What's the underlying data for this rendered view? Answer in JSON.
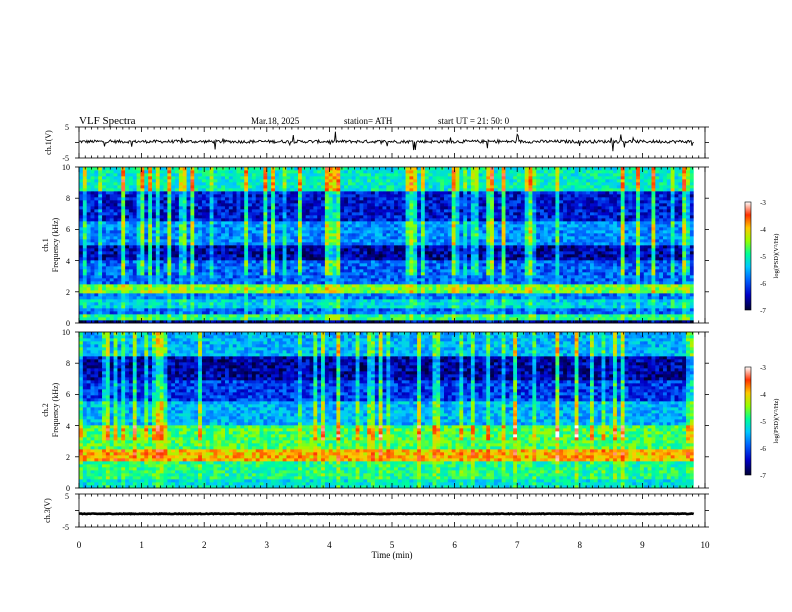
{
  "header": {
    "title": "VLF  Spectra",
    "date": "Mar.18, 2025",
    "station": "station= ATH",
    "start": "start  UT  =   21: 50: 0"
  },
  "panels": {
    "ch1_wave": {
      "ylabel": "ch.1(V)",
      "yticks": [
        "5",
        "-5"
      ]
    },
    "ch1_spec": {
      "ylabel_ch": "ch.1",
      "ylabel": "Frequency  (kHz)",
      "yticks": [
        "10",
        "8",
        "6",
        "4",
        "2",
        "0"
      ]
    },
    "ch2_spec": {
      "ylabel_ch": "ch.2",
      "ylabel": "Frequency  (kHz)",
      "yticks": [
        "10",
        "8",
        "6",
        "4",
        "2",
        "0"
      ]
    },
    "ch3_wave": {
      "ylabel": "ch.3(V)",
      "yticks": [
        "5",
        "-5"
      ]
    }
  },
  "xaxis": {
    "label": "Time  (min)",
    "ticks": [
      "0",
      "1",
      "2",
      "3",
      "4",
      "5",
      "6",
      "7",
      "8",
      "9",
      "10"
    ]
  },
  "colorbar": {
    "label": "log(PSD)(V²/Hz)",
    "ticks": [
      "-3",
      "-4",
      "-5",
      "-6",
      "-7"
    ]
  },
  "chart_data": [
    {
      "type": "line",
      "series_label": "ch.1(V)",
      "xlim": [
        0,
        10
      ],
      "ylim": [
        -5,
        5
      ],
      "data_extent_min": 9.82,
      "baseline_v": 0.3,
      "noise_amplitude_v": 1.0
    },
    {
      "type": "heatmap",
      "series_label": "ch.1",
      "xlabel": "Time  (min)",
      "ylabel": "Frequency  (kHz)",
      "xlim": [
        0,
        10
      ],
      "ylim": [
        0,
        10
      ],
      "color_scale": "log(PSD)(V²/Hz)",
      "clim": [
        -7,
        -3
      ],
      "colormap": [
        "#000033",
        "#0000c8",
        "#0064ff",
        "#00c8ff",
        "#00ff96",
        "#96ff00",
        "#ffc800",
        "#ff3200",
        "#ffffff"
      ],
      "data_extent_min": 9.82,
      "band_structure": [
        {
          "f_khz": [
            0.0,
            0.2
          ],
          "log_psd": -6.8
        },
        {
          "f_khz": [
            0.2,
            0.5
          ],
          "log_psd": -5.0
        },
        {
          "f_khz": [
            0.5,
            1.0
          ],
          "log_psd": -6.0
        },
        {
          "f_khz": [
            1.0,
            1.5
          ],
          "log_psd": -5.4
        },
        {
          "f_khz": [
            1.5,
            2.0
          ],
          "log_psd": -5.9
        },
        {
          "f_khz": [
            2.0,
            2.5
          ],
          "log_psd": -4.6
        },
        {
          "f_khz": [
            2.5,
            4.0
          ],
          "log_psd": -6.0
        },
        {
          "f_khz": [
            4.0,
            5.0
          ],
          "log_psd": -6.6
        },
        {
          "f_khz": [
            5.0,
            6.5
          ],
          "log_psd": -5.8
        },
        {
          "f_khz": [
            6.5,
            8.5
          ],
          "log_psd": -6.4
        },
        {
          "f_khz": [
            8.5,
            10.0
          ],
          "log_psd": -5.2
        }
      ]
    },
    {
      "type": "heatmap",
      "series_label": "ch.2",
      "xlabel": "Time  (min)",
      "ylabel": "Frequency  (kHz)",
      "xlim": [
        0,
        10
      ],
      "ylim": [
        0,
        10
      ],
      "color_scale": "log(PSD)(V²/Hz)",
      "clim": [
        -7,
        -3
      ],
      "colormap": [
        "#000033",
        "#0000c8",
        "#0064ff",
        "#00c8ff",
        "#00ff96",
        "#96ff00",
        "#ffc800",
        "#ff3200",
        "#ffffff"
      ],
      "data_extent_min": 9.82,
      "band_structure": [
        {
          "f_khz": [
            0.0,
            0.5
          ],
          "log_psd": -5.3
        },
        {
          "f_khz": [
            0.5,
            1.8
          ],
          "log_psd": -5.0
        },
        {
          "f_khz": [
            1.8,
            2.5
          ],
          "log_psd": -4.0
        },
        {
          "f_khz": [
            2.5,
            4.0
          ],
          "log_psd": -4.8
        },
        {
          "f_khz": [
            4.0,
            5.5
          ],
          "log_psd": -5.6
        },
        {
          "f_khz": [
            5.5,
            7.0
          ],
          "log_psd": -6.2
        },
        {
          "f_khz": [
            7.0,
            8.5
          ],
          "log_psd": -6.6
        },
        {
          "f_khz": [
            8.5,
            10.0
          ],
          "log_psd": -5.6
        }
      ]
    },
    {
      "type": "line",
      "series_label": "ch.3(V)",
      "xlim": [
        0,
        10
      ],
      "ylim": [
        -5,
        5
      ],
      "data_extent_min": 9.82,
      "baseline_v": -1.0,
      "noise_amplitude_v": 0.2
    }
  ]
}
